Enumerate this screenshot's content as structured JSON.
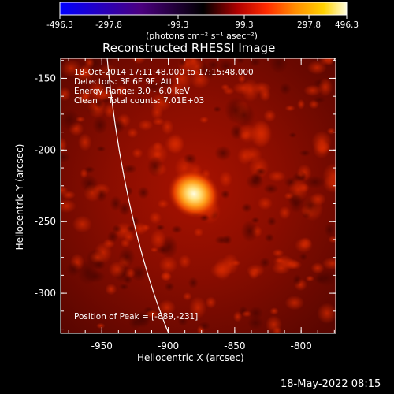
{
  "colorbar": {
    "ticks": [
      "-496.3",
      "-297.8",
      "-99.3",
      "99.3",
      "297.8",
      "496.3"
    ],
    "unit_label": "(photons cm⁻² s⁻¹ asec⁻²)",
    "colors": {
      "stops": [
        "#0000ff",
        "#4b0080",
        "#000000",
        "#b00000",
        "#ff2a00",
        "#ff8c00",
        "#ffd200",
        "#fffde0"
      ]
    }
  },
  "title": "Reconstructed RHESSI Image",
  "info": {
    "time_range": "18-Oct-2014 17:11:48.000 to 17:15:48.000",
    "detectors": "Detectors: 3F 6F 9F, Att 1",
    "energy": "Energy Range: 3.0 - 6.0 keV",
    "method": "Clean    Total counts: 7.01E+03"
  },
  "peak_label": "Position of Peak = [-889,-231]",
  "x_axis": {
    "label": "Heliocentric X (arcsec)",
    "ticks": [
      {
        "value": -950,
        "label": "-950"
      },
      {
        "value": -900,
        "label": "-900"
      },
      {
        "value": -850,
        "label": "-850"
      },
      {
        "value": -800,
        "label": "-800"
      }
    ],
    "range": [
      -981,
      -774
    ]
  },
  "y_axis": {
    "label": "Heliocentric Y (arcsec)",
    "ticks": [
      {
        "value": -150,
        "label": "-150"
      },
      {
        "value": -200,
        "label": "-200"
      },
      {
        "value": -250,
        "label": "-250"
      },
      {
        "value": -300,
        "label": "-300"
      }
    ],
    "range": [
      -328,
      -136
    ]
  },
  "footer_date": "18-May-2022 08:15"
}
